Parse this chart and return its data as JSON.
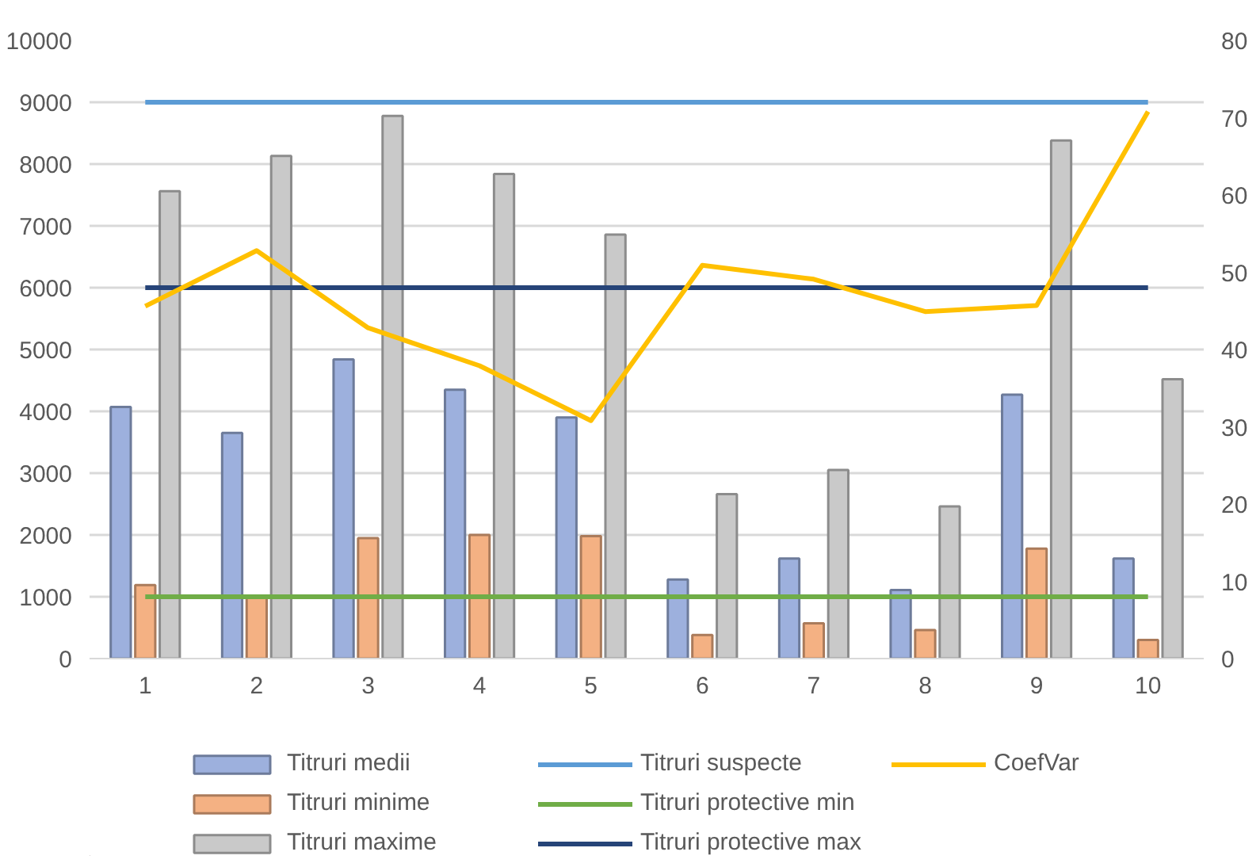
{
  "chart_data": {
    "type": "bar",
    "categories": [
      "1",
      "2",
      "3",
      "4",
      "5",
      "6",
      "7",
      "8",
      "9",
      "10"
    ],
    "series": [
      {
        "name": "Titruri medii",
        "color": "#9db0dd",
        "values": [
          4070,
          3650,
          4840,
          4350,
          3900,
          1280,
          1620,
          1110,
          4270,
          1620
        ]
      },
      {
        "name": "Titruri minime",
        "color": "#f4b183",
        "values": [
          1190,
          1000,
          1950,
          2000,
          1980,
          380,
          570,
          460,
          1780,
          300
        ]
      },
      {
        "name": "Titruri maxime",
        "color": "#c9c9c9",
        "values": [
          7560,
          8130,
          8780,
          7840,
          6860,
          2660,
          3050,
          2460,
          8380,
          4520
        ]
      },
      {
        "name": "Titruri suspecte",
        "type": "line",
        "color": "#5b9bd5",
        "values": [
          9000,
          9000,
          9000,
          9000,
          9000,
          9000,
          9000,
          9000,
          9000,
          9000
        ]
      },
      {
        "name": "Titruri protective min",
        "type": "line",
        "color": "#70ad47",
        "values": [
          1000,
          1000,
          1000,
          1000,
          1000,
          1000,
          1000,
          1000,
          1000,
          1000
        ]
      },
      {
        "name": "Titruri protective max",
        "type": "line",
        "color": "#264478",
        "values": [
          6000,
          6000,
          6000,
          6000,
          6000,
          6000,
          6000,
          6000,
          6000,
          6000
        ]
      },
      {
        "name": "CoefVar",
        "type": "line",
        "axis": "y2",
        "color": "#ffc000",
        "values": [
          45.6,
          52.8,
          42.8,
          37.9,
          30.8,
          50.9,
          49.1,
          44.9,
          45.7,
          70.8
        ]
      }
    ],
    "ylim": [
      0,
      10000
    ],
    "yticks": [
      0,
      1000,
      2000,
      3000,
      4000,
      5000,
      6000,
      7000,
      8000,
      9000,
      10000
    ],
    "y2lim": [
      0,
      80
    ],
    "y2ticks": [
      0,
      10,
      20,
      30,
      40,
      50,
      60,
      70,
      80
    ],
    "grid": "y",
    "legend": "bottom"
  }
}
